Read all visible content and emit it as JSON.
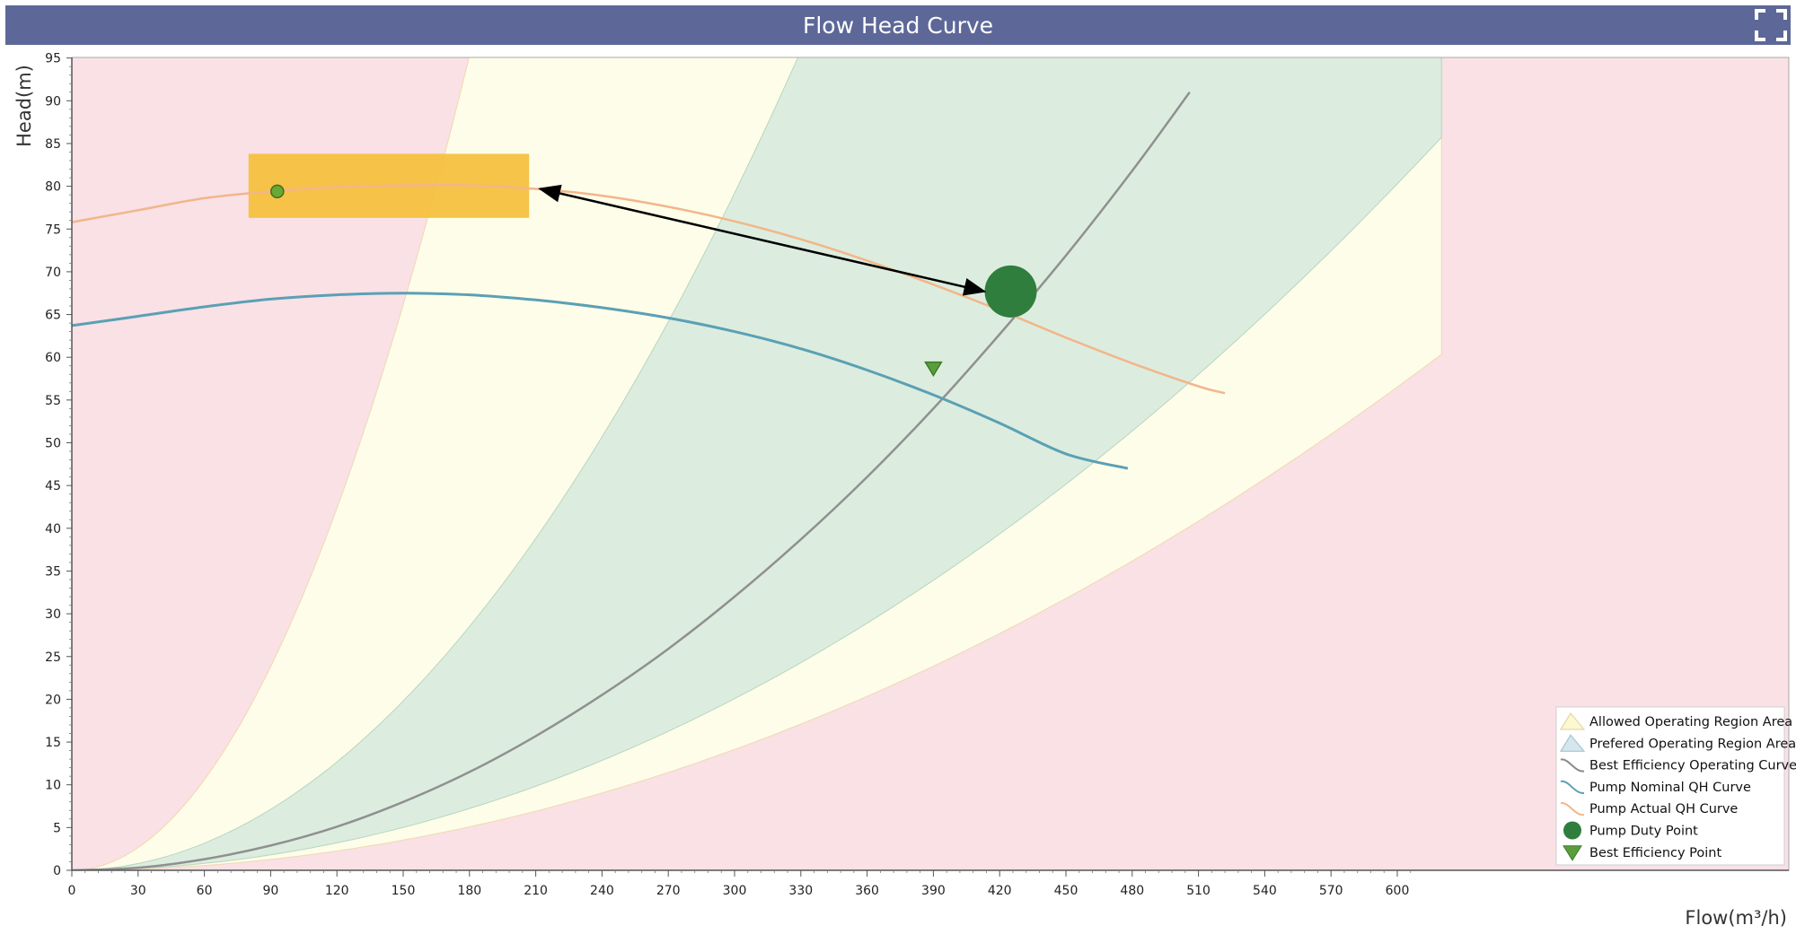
{
  "window": {
    "title": "Flow Head Curve",
    "expand_icon": "expand-icon"
  },
  "chart_data": {
    "type": "line",
    "title": "Flow Head Curve",
    "xlabel": "Flow(m³/h)",
    "ylabel": "Head(m)",
    "xlim": [
      0,
      610
    ],
    "ylim": [
      0,
      95
    ],
    "x_ticks": [
      0,
      30,
      60,
      90,
      120,
      150,
      180,
      210,
      240,
      270,
      300,
      330,
      360,
      390,
      420,
      450,
      480,
      510,
      540,
      570,
      600
    ],
    "y_ticks": [
      0,
      5,
      10,
      15,
      20,
      25,
      30,
      35,
      40,
      45,
      50,
      55,
      60,
      65,
      70,
      75,
      80,
      85,
      90,
      95
    ],
    "regions": {
      "allowed": {
        "boundary_k_left": 0.00294,
        "boundary_k_right": 0.000157
      },
      "preferred": {
        "boundary_k_left": 0.00088,
        "boundary_k_right": 0.000223
      },
      "outside_color": "#f9e1e6",
      "allowed_color": "#fefde9",
      "preferred_color": "#dceddf"
    },
    "series": [
      {
        "name": "Best Efficiency Operating Curve",
        "type": "line",
        "color": "#909090",
        "x": [
          0,
          30,
          60,
          90,
          120,
          150,
          180,
          210,
          240,
          270,
          300,
          330,
          360,
          390,
          420,
          450,
          480,
          506
        ],
        "y": [
          0,
          0.3,
          1.3,
          2.9,
          5.1,
          8.0,
          11.5,
          15.7,
          20.5,
          25.9,
          32.0,
          38.7,
          46.0,
          54.0,
          62.7,
          71.9,
          81.8,
          91.0
        ]
      },
      {
        "name": "Pump Nominal QH Curve",
        "type": "line",
        "color": "#5ba0b4",
        "x": [
          0,
          30,
          60,
          90,
          120,
          150,
          180,
          210,
          240,
          270,
          300,
          330,
          360,
          390,
          420,
          450,
          478
        ],
        "y": [
          63.7,
          64.8,
          65.9,
          66.8,
          67.3,
          67.5,
          67.3,
          66.7,
          65.8,
          64.6,
          63.0,
          61.0,
          58.5,
          55.6,
          52.3,
          48.7,
          47.0
        ]
      },
      {
        "name": "Pump Actual QH Curve",
        "type": "line",
        "color": "#f2b68a",
        "x": [
          0,
          30,
          60,
          90,
          120,
          150,
          180,
          210,
          240,
          270,
          300,
          330,
          360,
          390,
          420,
          450,
          480,
          510,
          522
        ],
        "y": [
          75.8,
          77.2,
          78.6,
          79.4,
          79.9,
          80.1,
          80.1,
          79.7,
          78.9,
          77.6,
          75.9,
          73.8,
          71.3,
          68.5,
          65.5,
          62.3,
          59.3,
          56.6,
          55.8
        ]
      },
      {
        "name": "Pump Duty Point",
        "type": "scatter",
        "color": "#2f7e3e",
        "x": [
          425
        ],
        "y": [
          67.7
        ]
      },
      {
        "name": "Best Efficiency Point",
        "type": "scatter",
        "color": "#5a9e3c",
        "x": [
          390
        ],
        "y": [
          58.7
        ]
      }
    ],
    "annotations": {
      "highlight_box": {
        "x0": 80,
        "x1": 207,
        "y0": 76.3,
        "y1": 83.8,
        "color": "#f5bf3a"
      },
      "small_marker": {
        "x": 93,
        "y": 79.4,
        "color": "#6aa834"
      },
      "arrow": {
        "from": {
          "x": 212,
          "y": 79.7
        },
        "to": {
          "x": 413,
          "y": 67.7
        }
      }
    },
    "legend": {
      "position": "bottom-right",
      "items": [
        {
          "label": "Allowed Operating Region Area",
          "icon": "mountain-yellow-icon"
        },
        {
          "label": "Prefered Operating Region Area",
          "icon": "mountain-blue-icon"
        },
        {
          "label": "Best Efficiency Operating Curve",
          "icon": "wave-gray-icon"
        },
        {
          "label": "Pump Nominal QH Curve",
          "icon": "wave-teal-icon"
        },
        {
          "label": "Pump Actual QH Curve",
          "icon": "wave-orange-icon"
        },
        {
          "label": "Pump Duty Point",
          "icon": "green-circle-icon"
        },
        {
          "label": "Best Efficiency Point",
          "icon": "green-triangle-icon"
        }
      ]
    },
    "grid": false
  }
}
